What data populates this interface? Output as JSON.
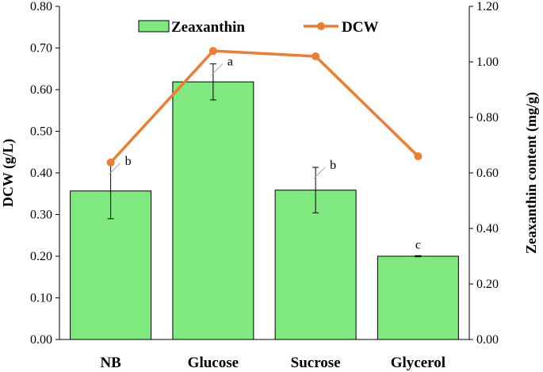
{
  "chart_data": {
    "type": "bar",
    "categories": [
      "NB",
      "Glucose",
      "Sucrose",
      "Glycerol"
    ],
    "series": [
      {
        "name": "Zeaxanthin",
        "kind": "bar",
        "axis": "right",
        "values": [
          0.535,
          0.928,
          0.538,
          0.3
        ],
        "errors": [
          0.1,
          0.065,
          0.082,
          0.002
        ],
        "significance": [
          "b",
          "a",
          "b",
          "c"
        ],
        "color": "#7FE87F",
        "edge_color": "#000000"
      },
      {
        "name": "DCW",
        "kind": "line",
        "axis": "left",
        "values": [
          0.425,
          0.693,
          0.68,
          0.44
        ],
        "color": "#ED7D31"
      }
    ],
    "ylabel": "DCW (g/L)",
    "ylim": [
      0,
      0.8
    ],
    "yticks": [
      "0.00",
      "0.10",
      "0.20",
      "0.30",
      "0.40",
      "0.50",
      "0.60",
      "0.70",
      "0.80"
    ],
    "y2label": "Zeaxanthin content (mg/g)",
    "y2lim": [
      0,
      1.2
    ],
    "y2ticks": [
      "0.00",
      "0.20",
      "0.40",
      "0.60",
      "0.80",
      "1.00",
      "1.20"
    ],
    "legend_position": "top",
    "grid": false
  }
}
